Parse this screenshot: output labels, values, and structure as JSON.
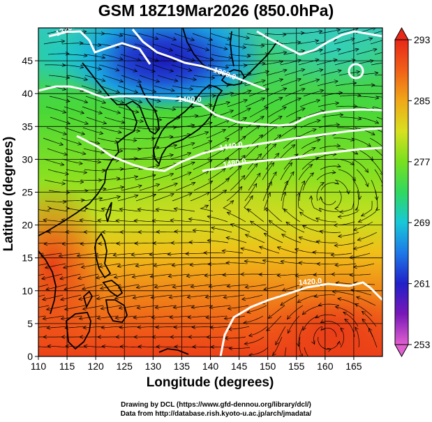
{
  "title": "GSM 18Z19Mar2026 (850.0hPa)",
  "x_axis": {
    "label": "Longitude (degrees)",
    "range": [
      110,
      170
    ],
    "ticks": [
      "110",
      "115",
      "120",
      "125",
      "130",
      "135",
      "140",
      "145",
      "150",
      "155",
      "160",
      "165"
    ]
  },
  "y_axis": {
    "label": "Latitude  (degrees)",
    "range": [
      0,
      50
    ],
    "ticks": [
      "0",
      "5",
      "10",
      "15",
      "20",
      "25",
      "30",
      "35",
      "40",
      "45"
    ]
  },
  "colorbar": {
    "ticks": [
      "293",
      "285",
      "277",
      "269",
      "261",
      "253"
    ],
    "range": [
      253,
      293
    ],
    "colors": [
      "#e060d0",
      "#7a18b8",
      "#2020c8",
      "#1e78e8",
      "#18c8d8",
      "#30d860",
      "#78e020",
      "#d8e020",
      "#f0a818",
      "#f06018",
      "#e82818"
    ]
  },
  "contour_labels": [
    "1320.0",
    "1360.0",
    "1400.0",
    "1440.0",
    "1480.0",
    "1420.0"
  ],
  "credits": [
    "Drawing by DCL (https://www.gfd-dennou.org/library/dcl/)",
    "Data from http://database.rish.kyoto-u.ac.jp/arch/jmadata/"
  ],
  "chart_data": {
    "type": "heatmap",
    "title": "GSM 18Z19Mar2026 (850.0hPa)",
    "xlabel": "Longitude (degrees)",
    "ylabel": "Latitude  (degrees)",
    "xlim": [
      110,
      170
    ],
    "ylim": [
      0,
      50
    ],
    "colorbar_range": [
      253,
      293
    ],
    "grid": true,
    "overlays": [
      "streamlines",
      "geopotential height contours (white)",
      "coastlines"
    ],
    "temperature_samples": [
      {
        "lon": 112,
        "lat": 45,
        "value": 271
      },
      {
        "lon": 128,
        "lat": 46,
        "value": 261
      },
      {
        "lon": 140,
        "lat": 45,
        "value": 264
      },
      {
        "lon": 160,
        "lat": 45,
        "value": 272
      },
      {
        "lon": 120,
        "lat": 35,
        "value": 277
      },
      {
        "lon": 150,
        "lat": 35,
        "value": 277
      },
      {
        "lon": 140,
        "lat": 25,
        "value": 280
      },
      {
        "lon": 115,
        "lat": 20,
        "value": 288
      },
      {
        "lon": 140,
        "lat": 10,
        "value": 287
      },
      {
        "lon": 160,
        "lat": 5,
        "value": 290
      }
    ]
  }
}
